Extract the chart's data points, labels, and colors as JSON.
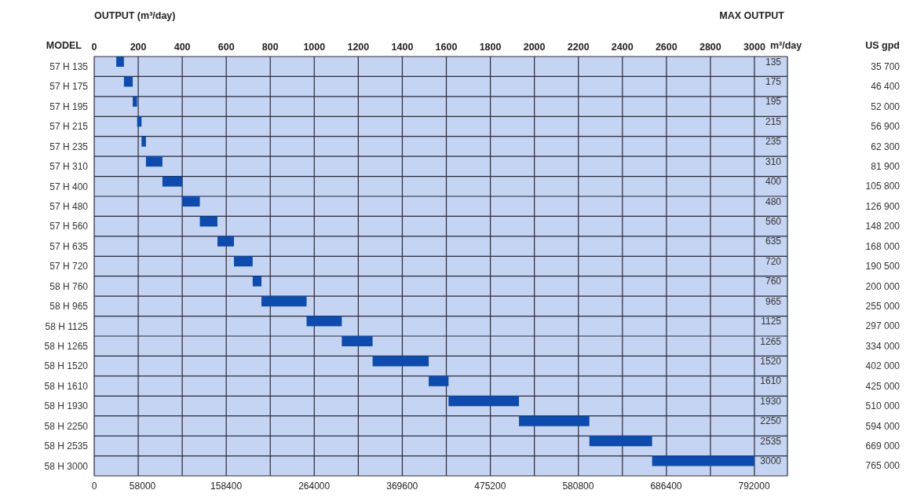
{
  "chart_data": {
    "type": "bar",
    "orientation": "horizontal",
    "xlabel": "OUTPUT (m³/day)",
    "ylabel": "MODEL",
    "categories": [
      "57 H 135",
      "57 H 175",
      "57 H 195",
      "57 H 215",
      "57 H 235",
      "57 H 310",
      "57 H 400",
      "57 H 480",
      "57 H 560",
      "57 H 635",
      "57 H 720",
      "58 H 760",
      "58 H 965",
      "58 H 1125",
      "58 H 1265",
      "58 H 1520",
      "58 H 1610",
      "58 H 1930",
      "58 H 2250",
      "58 H 2535",
      "58 H 3000"
    ],
    "base": [
      100,
      135,
      175,
      195,
      215,
      235,
      310,
      400,
      480,
      560,
      635,
      720,
      760,
      965,
      1125,
      1265,
      1520,
      1610,
      1930,
      2250,
      2535
    ],
    "values": [
      35,
      40,
      20,
      20,
      20,
      75,
      90,
      80,
      80,
      75,
      85,
      40,
      205,
      160,
      140,
      255,
      90,
      320,
      320,
      285,
      465
    ],
    "value_labels": [
      "135",
      "175",
      "195",
      "215",
      "235",
      "310",
      "400",
      "480",
      "560",
      "635",
      "720",
      "760",
      "965",
      "1125",
      "1265",
      "1520",
      "1610",
      "1930",
      "2250",
      "2535",
      "3000"
    ],
    "color": "#0d4cae",
    "xlim": [
      0,
      3150
    ],
    "xticks": [
      0,
      200,
      400,
      600,
      800,
      1000,
      1200,
      1400,
      1600,
      1800,
      2000,
      2200,
      2400,
      2600,
      2800,
      3000
    ],
    "x2lim": [
      0,
      832000
    ],
    "x2ticks": [
      0,
      58000,
      158400,
      264000,
      369600,
      475200,
      580800,
      686400,
      792000
    ],
    "grid": true,
    "annotations": [
      "MAX OUTPUT",
      "m³/day",
      "US gpd",
      "35 700",
      "46 400",
      "52 000",
      "56 900",
      "62 300",
      "81 900",
      "105 800",
      "126 900",
      "148 200",
      "168 000",
      "190 500",
      "200 000",
      "255 000",
      "297 000",
      "334 000",
      "402 000",
      "425 000",
      "510 000",
      "594 000",
      "669 000",
      "765 000"
    ]
  }
}
